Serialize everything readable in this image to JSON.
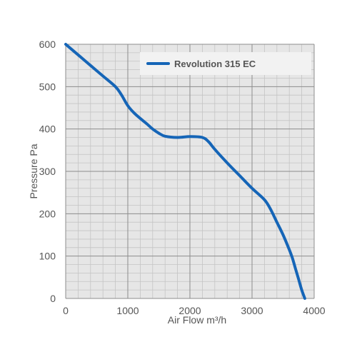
{
  "chart_data": {
    "type": "line",
    "xlabel": "Air Flow m³/h",
    "ylabel": "Pressure Pa",
    "xlim": [
      0,
      4000
    ],
    "ylim": [
      0,
      600
    ],
    "x_ticks": [
      0,
      1000,
      2000,
      3000,
      4000
    ],
    "y_ticks": [
      0,
      100,
      200,
      300,
      400,
      500,
      600
    ],
    "x_minor_step": 200,
    "y_minor_step": 20,
    "grid": true,
    "legend_position": "top-right",
    "series": [
      {
        "name": "Revolution 315 EC",
        "color": "#1565b7",
        "x": [
          0,
          200,
          400,
          600,
          800,
          900,
          1000,
          1100,
          1200,
          1300,
          1400,
          1500,
          1600,
          1800,
          2000,
          2200,
          2300,
          2400,
          2600,
          2800,
          3000,
          3200,
          3300,
          3400,
          3500,
          3600,
          3650,
          3700,
          3750,
          3800,
          3850
        ],
        "y": [
          600,
          575,
          550,
          525,
          500,
          480,
          455,
          438,
          425,
          413,
          400,
          390,
          383,
          380,
          382,
          380,
          370,
          352,
          320,
          290,
          260,
          233,
          210,
          180,
          150,
          115,
          95,
          70,
          45,
          20,
          0
        ]
      }
    ]
  },
  "colors": {
    "plot_background": "#e6e6e6",
    "major_grid": "#8c8c8c",
    "minor_grid": "#c4c4c4"
  }
}
